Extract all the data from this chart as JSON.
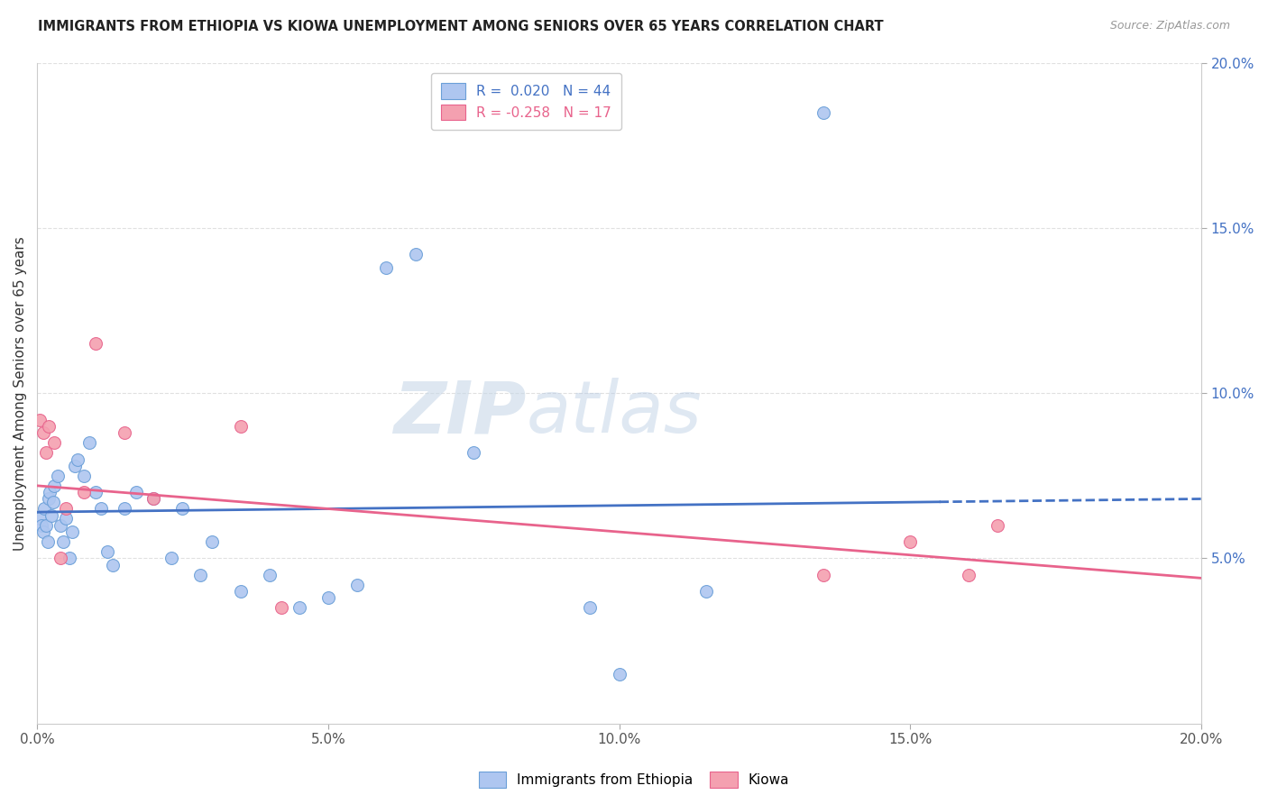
{
  "title": "IMMIGRANTS FROM ETHIOPIA VS KIOWA UNEMPLOYMENT AMONG SENIORS OVER 65 YEARS CORRELATION CHART",
  "source": "Source: ZipAtlas.com",
  "ylabel": "Unemployment Among Seniors over 65 years",
  "x_tick_positions": [
    0.0,
    5.0,
    10.0,
    15.0,
    20.0
  ],
  "y_tick_positions": [
    5.0,
    10.0,
    15.0,
    20.0
  ],
  "xlim": [
    0.0,
    20.0
  ],
  "ylim": [
    0.0,
    20.0
  ],
  "legend_entries": [
    {
      "label": "Immigrants from Ethiopia",
      "R": 0.02,
      "N": 44,
      "color": "#aec6f0"
    },
    {
      "label": "Kiowa",
      "R": -0.258,
      "N": 17,
      "color": "#f4a0b0"
    }
  ],
  "blue_scatter_x": [
    0.05,
    0.08,
    0.1,
    0.12,
    0.15,
    0.18,
    0.2,
    0.22,
    0.25,
    0.28,
    0.3,
    0.35,
    0.4,
    0.45,
    0.5,
    0.55,
    0.6,
    0.65,
    0.7,
    0.8,
    0.9,
    1.0,
    1.1,
    1.2,
    1.3,
    1.5,
    1.7,
    2.0,
    2.3,
    2.5,
    2.8,
    3.0,
    3.5,
    4.0,
    4.5,
    5.0,
    5.5,
    6.0,
    6.5,
    7.5,
    9.5,
    10.0,
    11.5,
    13.5
  ],
  "blue_scatter_y": [
    6.2,
    6.0,
    5.8,
    6.5,
    6.0,
    5.5,
    6.8,
    7.0,
    6.3,
    6.7,
    7.2,
    7.5,
    6.0,
    5.5,
    6.2,
    5.0,
    5.8,
    7.8,
    8.0,
    7.5,
    8.5,
    7.0,
    6.5,
    5.2,
    4.8,
    6.5,
    7.0,
    6.8,
    5.0,
    6.5,
    4.5,
    5.5,
    4.0,
    4.5,
    3.5,
    3.8,
    4.2,
    13.8,
    14.2,
    8.2,
    3.5,
    1.5,
    4.0,
    18.5
  ],
  "pink_scatter_x": [
    0.05,
    0.1,
    0.15,
    0.2,
    0.3,
    0.4,
    0.5,
    0.8,
    1.0,
    1.5,
    2.0,
    3.5,
    4.2,
    13.5,
    15.0,
    16.0,
    16.5
  ],
  "pink_scatter_y": [
    9.2,
    8.8,
    8.2,
    9.0,
    8.5,
    5.0,
    6.5,
    7.0,
    11.5,
    8.8,
    6.8,
    9.0,
    3.5,
    4.5,
    5.5,
    4.5,
    6.0
  ],
  "blue_line_x0": 0.0,
  "blue_line_y0": 6.4,
  "blue_line_x1": 20.0,
  "blue_line_y1": 6.8,
  "blue_line_solid_end_x": 15.5,
  "pink_line_x0": 0.0,
  "pink_line_y0": 7.2,
  "pink_line_x1": 20.0,
  "pink_line_y1": 4.4,
  "blue_line_color": "#4472c4",
  "pink_line_color": "#e8638c",
  "scatter_blue_color": "#aec6f0",
  "scatter_blue_edge": "#6a9fd8",
  "scatter_pink_color": "#f4a0b0",
  "scatter_pink_edge": "#e8638c",
  "scatter_size": 100,
  "watermark_zip": "ZIP",
  "watermark_atlas": "atlas",
  "background_color": "#ffffff",
  "grid_color": "#e0e0e0"
}
